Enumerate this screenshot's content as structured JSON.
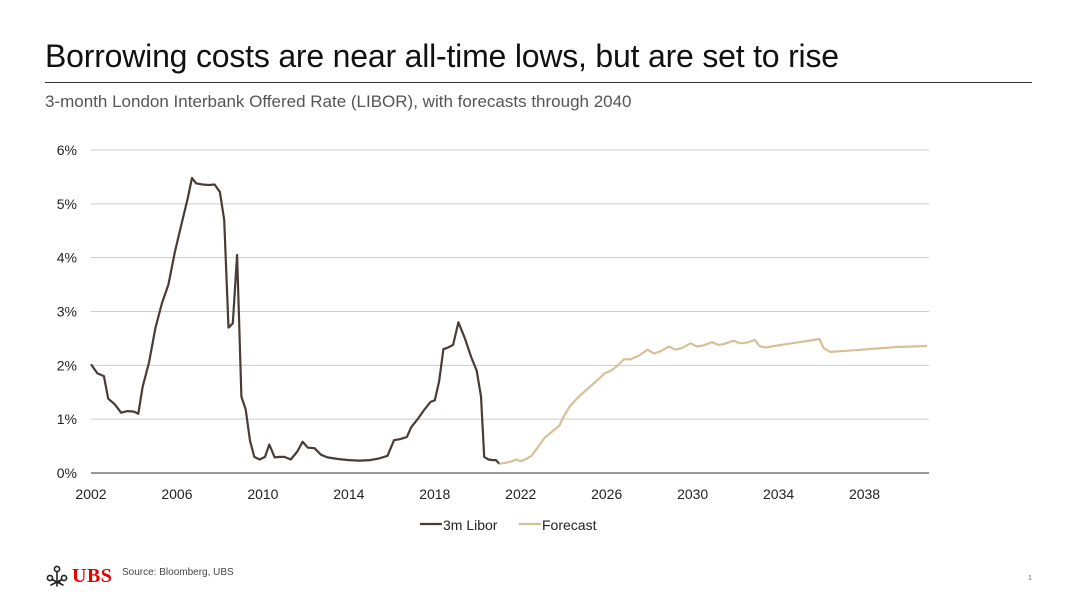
{
  "header": {
    "title": "Borrowing costs are near all-time lows, but are set to rise",
    "subtitle": "3-month London Interbank Offered Rate (LIBOR), with forecasts through 2040"
  },
  "footer": {
    "logo_text": "UBS",
    "logo_icon": "ubs-keys-icon",
    "source": "Source: Bloomberg, UBS",
    "page_number": "1"
  },
  "colors": {
    "libor": "#4a3c34",
    "forecast": "#d9bf98",
    "grid": "#cccccc",
    "axis": "#333333",
    "brand_red": "#e60000"
  },
  "chart_data": {
    "type": "line",
    "xlim": [
      2002,
      2041
    ],
    "ylim": [
      0,
      6
    ],
    "x_ticks": [
      2002,
      2006,
      2010,
      2014,
      2018,
      2022,
      2026,
      2030,
      2034,
      2038
    ],
    "x_tick_labels": [
      "2002",
      "2006",
      "2010",
      "2014",
      "2018",
      "2022",
      "2026",
      "2030",
      "2034",
      "2038"
    ],
    "y_ticks": [
      0,
      1,
      2,
      3,
      4,
      5,
      6
    ],
    "y_tick_labels": [
      "0%",
      "1%",
      "2%",
      "3%",
      "4%",
      "5%",
      "6%"
    ],
    "grid": true,
    "legend_position": "bottom",
    "series": [
      {
        "name": "3m Libor",
        "color": "#4a3c34",
        "points": [
          [
            2002.0,
            2.02
          ],
          [
            2002.3,
            1.85
          ],
          [
            2002.6,
            1.8
          ],
          [
            2002.8,
            1.38
          ],
          [
            2003.1,
            1.28
          ],
          [
            2003.4,
            1.12
          ],
          [
            2003.7,
            1.15
          ],
          [
            2004.0,
            1.14
          ],
          [
            2004.2,
            1.1
          ],
          [
            2004.4,
            1.6
          ],
          [
            2004.7,
            2.05
          ],
          [
            2005.0,
            2.7
          ],
          [
            2005.3,
            3.15
          ],
          [
            2005.6,
            3.5
          ],
          [
            2005.9,
            4.1
          ],
          [
            2006.2,
            4.6
          ],
          [
            2006.5,
            5.1
          ],
          [
            2006.7,
            5.48
          ],
          [
            2006.9,
            5.38
          ],
          [
            2007.2,
            5.36
          ],
          [
            2007.5,
            5.35
          ],
          [
            2007.75,
            5.36
          ],
          [
            2008.0,
            5.22
          ],
          [
            2008.2,
            4.7
          ],
          [
            2008.4,
            2.7
          ],
          [
            2008.6,
            2.78
          ],
          [
            2008.8,
            4.05
          ],
          [
            2009.0,
            1.42
          ],
          [
            2009.2,
            1.18
          ],
          [
            2009.4,
            0.6
          ],
          [
            2009.6,
            0.3
          ],
          [
            2009.85,
            0.25
          ],
          [
            2010.1,
            0.3
          ],
          [
            2010.3,
            0.53
          ],
          [
            2010.55,
            0.29
          ],
          [
            2010.8,
            0.3
          ],
          [
            2011.0,
            0.3
          ],
          [
            2011.3,
            0.25
          ],
          [
            2011.6,
            0.4
          ],
          [
            2011.85,
            0.58
          ],
          [
            2012.1,
            0.47
          ],
          [
            2012.4,
            0.46
          ],
          [
            2012.7,
            0.34
          ],
          [
            2013.0,
            0.29
          ],
          [
            2013.5,
            0.26
          ],
          [
            2014.0,
            0.24
          ],
          [
            2014.5,
            0.23
          ],
          [
            2015.0,
            0.24
          ],
          [
            2015.4,
            0.27
          ],
          [
            2015.8,
            0.32
          ],
          [
            2016.1,
            0.61
          ],
          [
            2016.4,
            0.63
          ],
          [
            2016.7,
            0.67
          ],
          [
            2016.9,
            0.85
          ],
          [
            2017.2,
            1.0
          ],
          [
            2017.5,
            1.17
          ],
          [
            2017.8,
            1.32
          ],
          [
            2018.0,
            1.35
          ],
          [
            2018.2,
            1.7
          ],
          [
            2018.4,
            2.3
          ],
          [
            2018.6,
            2.33
          ],
          [
            2018.85,
            2.38
          ],
          [
            2019.1,
            2.8
          ],
          [
            2019.4,
            2.5
          ],
          [
            2019.7,
            2.15
          ],
          [
            2019.95,
            1.9
          ],
          [
            2020.15,
            1.42
          ],
          [
            2020.3,
            0.3
          ],
          [
            2020.5,
            0.25
          ],
          [
            2020.7,
            0.24
          ],
          [
            2020.85,
            0.24
          ],
          [
            2021.0,
            0.17
          ]
        ]
      },
      {
        "name": "Forecast",
        "color": "#d9bf98",
        "points": [
          [
            2021.0,
            0.17
          ],
          [
            2021.3,
            0.19
          ],
          [
            2021.6,
            0.22
          ],
          [
            2021.8,
            0.25
          ],
          [
            2022.0,
            0.22
          ],
          [
            2022.2,
            0.25
          ],
          [
            2022.5,
            0.32
          ],
          [
            2022.8,
            0.48
          ],
          [
            2023.1,
            0.65
          ],
          [
            2023.4,
            0.75
          ],
          [
            2023.8,
            0.88
          ],
          [
            2024.0,
            1.05
          ],
          [
            2024.3,
            1.25
          ],
          [
            2024.7,
            1.42
          ],
          [
            2025.1,
            1.56
          ],
          [
            2025.5,
            1.7
          ],
          [
            2025.9,
            1.85
          ],
          [
            2026.2,
            1.9
          ],
          [
            2026.5,
            1.99
          ],
          [
            2026.8,
            2.11
          ],
          [
            2027.1,
            2.11
          ],
          [
            2027.5,
            2.18
          ],
          [
            2027.9,
            2.29
          ],
          [
            2028.2,
            2.22
          ],
          [
            2028.5,
            2.26
          ],
          [
            2028.9,
            2.35
          ],
          [
            2029.2,
            2.29
          ],
          [
            2029.5,
            2.32
          ],
          [
            2029.9,
            2.41
          ],
          [
            2030.2,
            2.35
          ],
          [
            2030.5,
            2.37
          ],
          [
            2030.9,
            2.43
          ],
          [
            2031.2,
            2.38
          ],
          [
            2031.5,
            2.4
          ],
          [
            2031.9,
            2.46
          ],
          [
            2032.2,
            2.41
          ],
          [
            2032.5,
            2.42
          ],
          [
            2032.9,
            2.47
          ],
          [
            2033.1,
            2.36
          ],
          [
            2033.4,
            2.33
          ],
          [
            2033.8,
            2.36
          ],
          [
            2034.3,
            2.39
          ],
          [
            2034.8,
            2.42
          ],
          [
            2035.3,
            2.45
          ],
          [
            2035.9,
            2.49
          ],
          [
            2036.1,
            2.32
          ],
          [
            2036.4,
            2.25
          ],
          [
            2036.8,
            2.26
          ],
          [
            2037.5,
            2.28
          ],
          [
            2038.5,
            2.31
          ],
          [
            2039.5,
            2.34
          ],
          [
            2040.9,
            2.36
          ]
        ]
      }
    ]
  }
}
